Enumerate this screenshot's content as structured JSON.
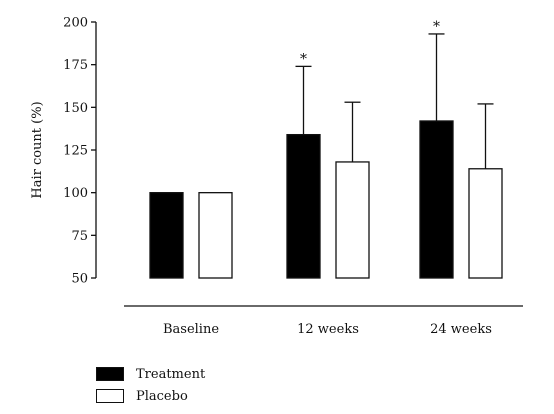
{
  "chart_data": {
    "type": "bar",
    "title": "",
    "xlabel": "",
    "ylabel": "Hair count (%)",
    "ylim": [
      50,
      200
    ],
    "yticks": [
      50,
      75,
      100,
      125,
      150,
      175,
      200
    ],
    "categories": [
      "Baseline",
      "12 weeks",
      "24 weeks"
    ],
    "series": [
      {
        "name": "Treatment",
        "color": "#000000",
        "fill": "#000000",
        "values": [
          100,
          134,
          142
        ],
        "error_upper": [
          null,
          174,
          193
        ],
        "significance": [
          "",
          "*",
          "*"
        ]
      },
      {
        "name": "Placebo",
        "color": "#000000",
        "fill": "#ffffff",
        "values": [
          100,
          118,
          114
        ],
        "error_upper": [
          null,
          153,
          152
        ],
        "significance": [
          "",
          "",
          ""
        ]
      }
    ],
    "legend_placement": "bottom-left",
    "grid": false
  }
}
